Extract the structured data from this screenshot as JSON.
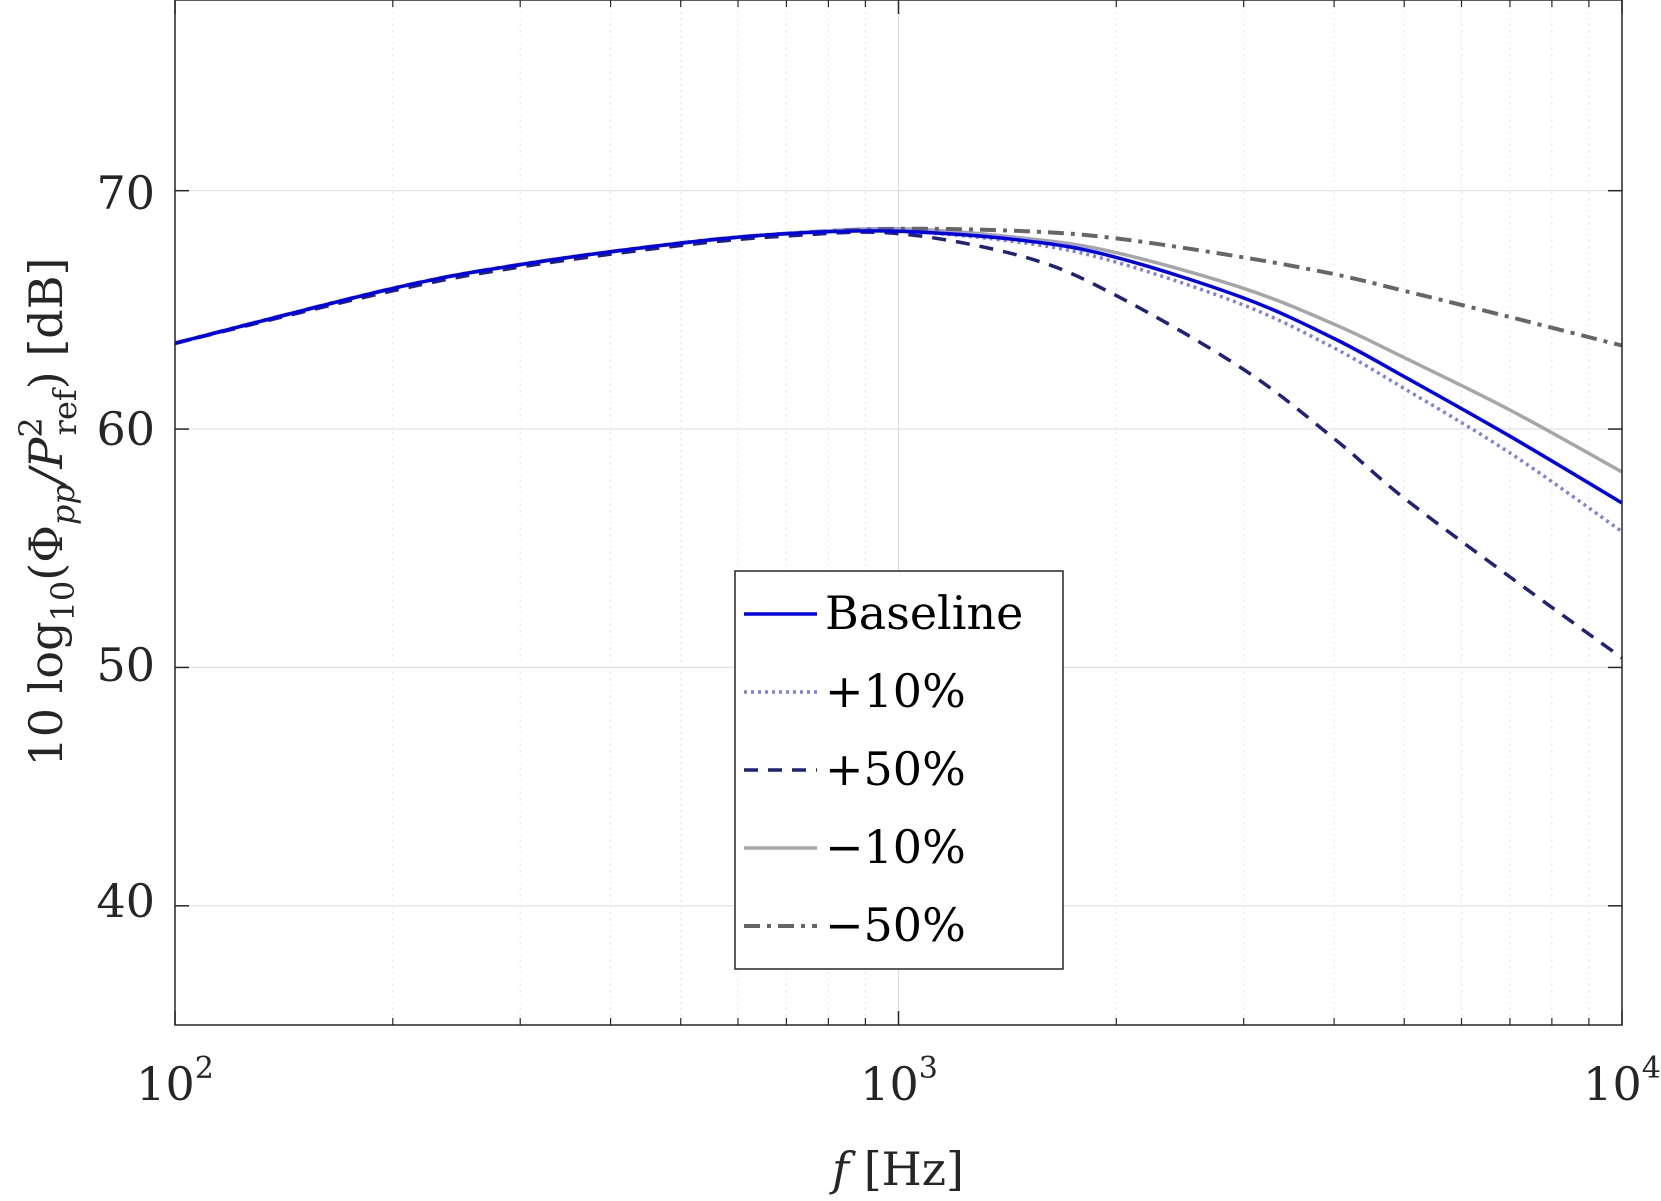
{
  "chart_data": {
    "type": "line",
    "x_scale": "log",
    "xlim": [
      100,
      10000
    ],
    "ylim": [
      35,
      78
    ],
    "grid": true,
    "legend_position": "bottom-center",
    "x_tick_labels": [
      {
        "base": "10",
        "exp": "2"
      },
      {
        "base": "10",
        "exp": "3"
      },
      {
        "base": "10",
        "exp": "4"
      }
    ],
    "y_tick_labels": [
      "40",
      "50",
      "60",
      "70"
    ],
    "xlabel": {
      "italic": "f",
      "rest": " [Hz]"
    },
    "ylabel": {
      "pre": "10 log",
      "pre_sub": "10",
      "open": "(Φ",
      "phi_sub": "pp",
      "mid": "/P",
      "p_sup": "2",
      "p_sub": "ref",
      "post": ") [dB]"
    },
    "series": [
      {
        "name": "Baseline",
        "color": "#0000ee",
        "style": "solid",
        "x": [
          100,
          200,
          300,
          500,
          700,
          1000,
          1500,
          2000,
          3000,
          4000,
          5000,
          7000,
          10000
        ],
        "y": [
          63.6,
          65.9,
          66.9,
          67.8,
          68.2,
          68.3,
          67.9,
          67.2,
          65.5,
          63.8,
          62.2,
          59.7,
          56.9
        ]
      },
      {
        "name": "+10%",
        "color": "#7f7fdf",
        "style": "dotted",
        "x": [
          100,
          200,
          300,
          500,
          700,
          1000,
          1500,
          2000,
          3000,
          4000,
          5000,
          7000,
          10000
        ],
        "y": [
          63.6,
          65.9,
          66.9,
          67.8,
          68.2,
          68.3,
          67.8,
          67.0,
          65.2,
          63.4,
          61.7,
          59.0,
          55.7
        ]
      },
      {
        "name": "+50%",
        "color": "#1f2278",
        "style": "dashed",
        "x": [
          100,
          200,
          300,
          500,
          700,
          1000,
          1500,
          2000,
          3000,
          4000,
          5000,
          7000,
          10000
        ],
        "y": [
          63.6,
          65.8,
          66.8,
          67.7,
          68.1,
          68.2,
          67.2,
          65.6,
          62.5,
          59.6,
          57.1,
          53.8,
          50.4
        ]
      },
      {
        "name": "−10%",
        "color": "#a6a6a6",
        "style": "solid",
        "x": [
          100,
          200,
          300,
          500,
          700,
          1000,
          1500,
          2000,
          3000,
          4000,
          5000,
          7000,
          10000
        ],
        "y": [
          63.6,
          65.9,
          66.9,
          67.8,
          68.2,
          68.4,
          68.0,
          67.4,
          65.9,
          64.4,
          63.0,
          60.8,
          58.2
        ]
      },
      {
        "name": "−50%",
        "color": "#666666",
        "style": "dashdot",
        "x": [
          100,
          200,
          300,
          500,
          700,
          1000,
          1500,
          2000,
          3000,
          4000,
          5000,
          7000,
          10000
        ],
        "y": [
          63.6,
          65.9,
          66.9,
          67.8,
          68.2,
          68.4,
          68.3,
          68.0,
          67.2,
          66.5,
          65.8,
          64.7,
          63.5
        ]
      }
    ]
  }
}
